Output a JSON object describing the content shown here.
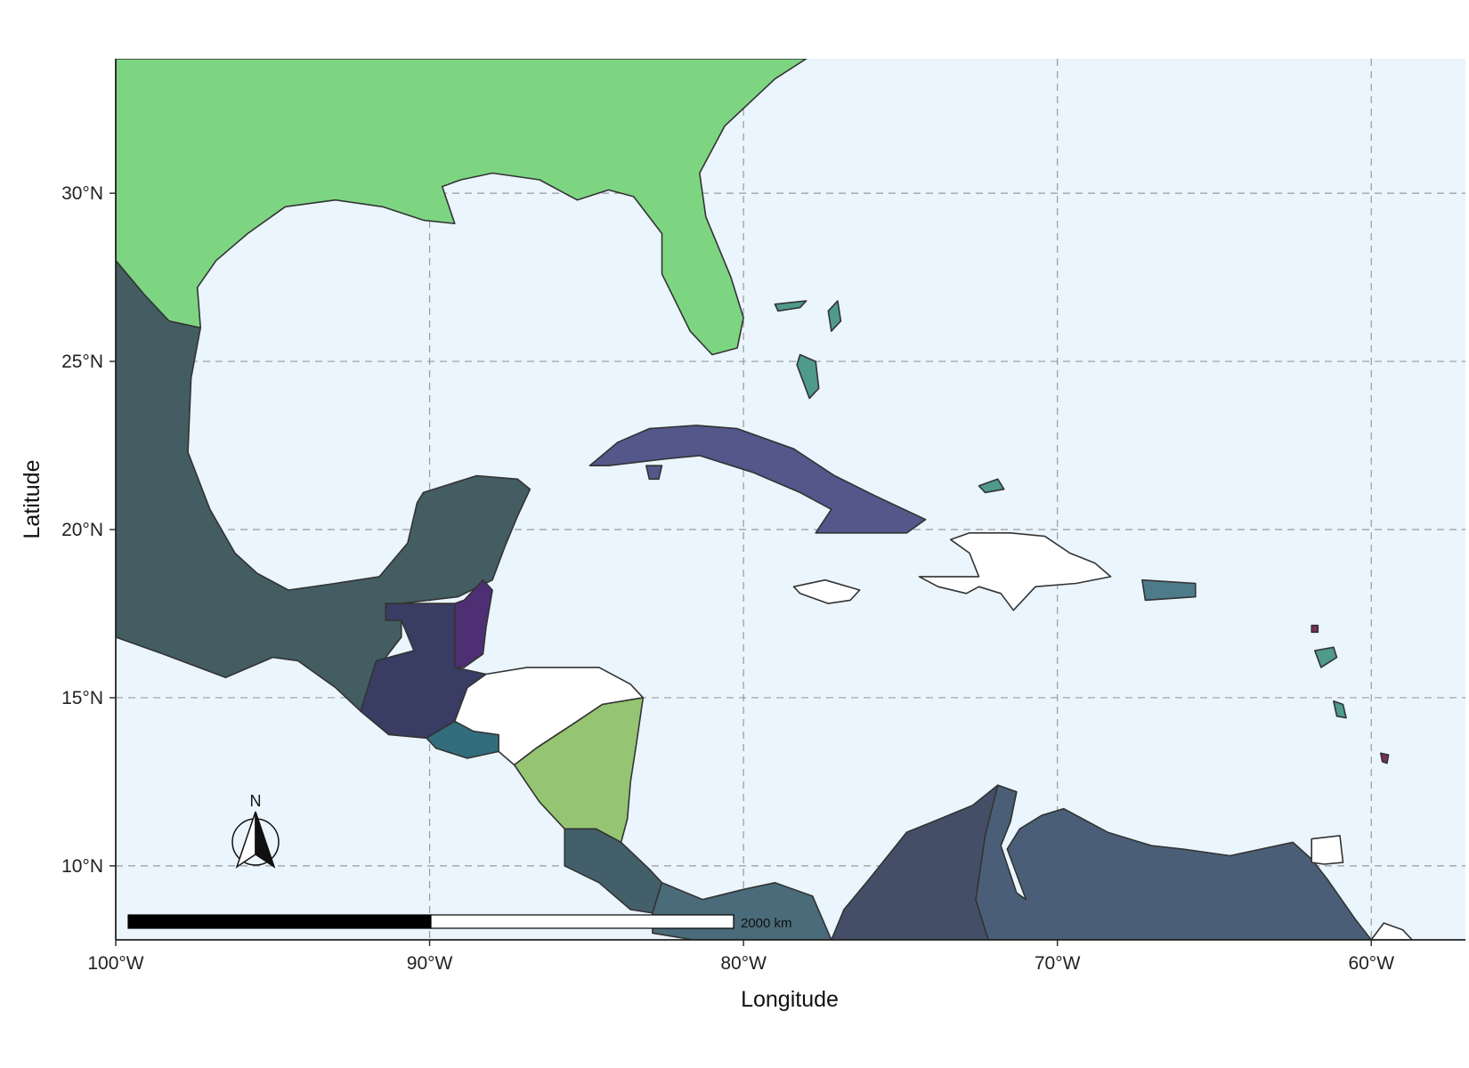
{
  "map": {
    "xlabel": "Longitude",
    "ylabel": "Latitude",
    "lon_range": [
      -100,
      -57
    ],
    "lat_range": [
      7.8,
      34.0
    ],
    "ocean_color": "#eaf5fd",
    "x_ticks": [
      {
        "value": -100,
        "label": "100°W"
      },
      {
        "value": -90,
        "label": "90°W"
      },
      {
        "value": -80,
        "label": "80°W"
      },
      {
        "value": -70,
        "label": "70°W"
      },
      {
        "value": -60,
        "label": "60°W"
      }
    ],
    "y_ticks": [
      {
        "value": 10,
        "label": "10°N"
      },
      {
        "value": 15,
        "label": "15°N"
      },
      {
        "value": 20,
        "label": "20°N"
      },
      {
        "value": 25,
        "label": "25°N"
      },
      {
        "value": 30,
        "label": "30°N"
      }
    ],
    "grid": true,
    "scale_bar": {
      "label": "2000 km"
    },
    "north_arrow": {
      "label": "N"
    }
  },
  "chart_data": {
    "type": "choropleth",
    "xlabel": "Longitude",
    "ylabel": "Latitude",
    "xlim": [
      -100,
      -57
    ],
    "ylim": [
      7.8,
      34.0
    ],
    "grid": true,
    "regions": [
      {
        "id": "usa",
        "color": "#7dd582",
        "outline": [
          [
            -100,
            34
          ],
          [
            -78,
            34
          ],
          [
            -79,
            33.4
          ],
          [
            -80.6,
            32
          ],
          [
            -81.4,
            30.6
          ],
          [
            -81.2,
            29.3
          ],
          [
            -80.4,
            27.5
          ],
          [
            -80.0,
            26.3
          ],
          [
            -80.2,
            25.4
          ],
          [
            -81.0,
            25.2
          ],
          [
            -81.7,
            25.9
          ],
          [
            -82.6,
            27.6
          ],
          [
            -82.6,
            28.8
          ],
          [
            -83.5,
            29.9
          ],
          [
            -84.3,
            30.1
          ],
          [
            -85.3,
            29.8
          ],
          [
            -86.5,
            30.4
          ],
          [
            -88.0,
            30.6
          ],
          [
            -89.0,
            30.4
          ],
          [
            -89.6,
            30.2
          ],
          [
            -89.2,
            29.1
          ],
          [
            -90.2,
            29.2
          ],
          [
            -91.5,
            29.6
          ],
          [
            -93.0,
            29.8
          ],
          [
            -94.6,
            29.6
          ],
          [
            -95.8,
            28.8
          ],
          [
            -96.8,
            28.0
          ],
          [
            -97.4,
            27.2
          ],
          [
            -97.3,
            26.0
          ],
          [
            -100,
            26.2
          ]
        ]
      },
      {
        "id": "mexico",
        "color": "#435d63",
        "outline": [
          [
            -100,
            28
          ],
          [
            -99.1,
            27
          ],
          [
            -98.3,
            26.2
          ],
          [
            -97.3,
            26.0
          ],
          [
            -97.6,
            24.5
          ],
          [
            -97.7,
            22.3
          ],
          [
            -97.0,
            20.6
          ],
          [
            -96.2,
            19.3
          ],
          [
            -95.5,
            18.7
          ],
          [
            -94.5,
            18.2
          ],
          [
            -93.0,
            18.4
          ],
          [
            -91.6,
            18.6
          ],
          [
            -90.7,
            19.6
          ],
          [
            -90.4,
            20.8
          ],
          [
            -90.2,
            21.1
          ],
          [
            -88.5,
            21.6
          ],
          [
            -87.2,
            21.5
          ],
          [
            -86.8,
            21.2
          ],
          [
            -87.2,
            20.4
          ],
          [
            -87.6,
            19.5
          ],
          [
            -88.0,
            18.5
          ],
          [
            -89.1,
            18.0
          ],
          [
            -90.9,
            17.8
          ],
          [
            -90.9,
            16.8
          ],
          [
            -91.4,
            16.2
          ],
          [
            -92.2,
            14.6
          ],
          [
            -93.0,
            15.3
          ],
          [
            -94.2,
            16.1
          ],
          [
            -95.0,
            16.2
          ],
          [
            -96.5,
            15.6
          ],
          [
            -98.5,
            16.3
          ],
          [
            -100,
            16.8
          ]
        ]
      },
      {
        "id": "guatemala",
        "color": "#393c63",
        "outline": [
          [
            -91.4,
            17.8
          ],
          [
            -89.2,
            17.8
          ],
          [
            -89.2,
            15.9
          ],
          [
            -88.2,
            15.7
          ],
          [
            -88.8,
            15.3
          ],
          [
            -89.2,
            14.3
          ],
          [
            -90.1,
            13.8
          ],
          [
            -91.3,
            13.9
          ],
          [
            -92.2,
            14.6
          ],
          [
            -91.7,
            16.1
          ],
          [
            -90.5,
            16.4
          ],
          [
            -90.9,
            17.3
          ],
          [
            -91.4,
            17.3
          ]
        ]
      },
      {
        "id": "belize",
        "color": "#4e2f73",
        "outline": [
          [
            -89.2,
            17.8
          ],
          [
            -88.9,
            17.9
          ],
          [
            -88.3,
            18.5
          ],
          [
            -88.0,
            18.2
          ],
          [
            -88.2,
            17.1
          ],
          [
            -88.3,
            16.3
          ],
          [
            -88.9,
            15.9
          ],
          [
            -89.2,
            15.9
          ]
        ]
      },
      {
        "id": "honduras",
        "color": "#ffffff",
        "outline": [
          [
            -88.2,
            15.7
          ],
          [
            -86.9,
            15.9
          ],
          [
            -85.9,
            15.9
          ],
          [
            -84.6,
            15.9
          ],
          [
            -83.6,
            15.4
          ],
          [
            -83.2,
            15.0
          ],
          [
            -84.5,
            14.8
          ],
          [
            -85.3,
            14.3
          ],
          [
            -86.6,
            13.5
          ],
          [
            -87.3,
            13.0
          ],
          [
            -87.8,
            13.4
          ],
          [
            -88.8,
            14.0
          ],
          [
            -89.2,
            14.3
          ],
          [
            -88.8,
            15.3
          ]
        ]
      },
      {
        "id": "el-salvador",
        "color": "#326d7d",
        "outline": [
          [
            -90.1,
            13.8
          ],
          [
            -89.2,
            14.3
          ],
          [
            -88.6,
            14.0
          ],
          [
            -87.8,
            13.9
          ],
          [
            -87.8,
            13.4
          ],
          [
            -88.8,
            13.2
          ],
          [
            -89.8,
            13.5
          ]
        ]
      },
      {
        "id": "nicaragua",
        "color": "#95c573",
        "outline": [
          [
            -87.3,
            13.0
          ],
          [
            -86.6,
            13.5
          ],
          [
            -85.3,
            14.3
          ],
          [
            -84.5,
            14.8
          ],
          [
            -83.2,
            15.0
          ],
          [
            -83.4,
            13.7
          ],
          [
            -83.6,
            12.5
          ],
          [
            -83.7,
            11.4
          ],
          [
            -83.9,
            10.7
          ],
          [
            -84.7,
            11.1
          ],
          [
            -85.7,
            11.1
          ],
          [
            -86.5,
            11.9
          ]
        ]
      },
      {
        "id": "costa-rica",
        "color": "#43606a",
        "outline": [
          [
            -85.7,
            11.1
          ],
          [
            -84.7,
            11.1
          ],
          [
            -83.9,
            10.7
          ],
          [
            -83.0,
            9.9
          ],
          [
            -82.6,
            9.5
          ],
          [
            -82.9,
            8.6
          ],
          [
            -83.6,
            8.7
          ],
          [
            -84.6,
            9.5
          ],
          [
            -85.7,
            10.0
          ]
        ]
      },
      {
        "id": "panama",
        "color": "#4a6b7a",
        "outline": [
          [
            -82.9,
            8.6
          ],
          [
            -82.6,
            9.5
          ],
          [
            -81.3,
            9.0
          ],
          [
            -80.0,
            9.3
          ],
          [
            -79.0,
            9.5
          ],
          [
            -77.8,
            9.1
          ],
          [
            -77.2,
            7.8
          ],
          [
            -78.5,
            7.8
          ],
          [
            -80.4,
            7.8
          ],
          [
            -81.6,
            7.8
          ],
          [
            -82.9,
            8.0
          ]
        ]
      },
      {
        "id": "colombia",
        "color": "#444f67",
        "outline": [
          [
            -77.2,
            7.8
          ],
          [
            -76.8,
            8.7
          ],
          [
            -76.0,
            9.6
          ],
          [
            -74.8,
            11.0
          ],
          [
            -74.0,
            11.3
          ],
          [
            -72.7,
            11.8
          ],
          [
            -71.9,
            12.4
          ],
          [
            -71.3,
            12.2
          ],
          [
            -71.5,
            11.3
          ],
          [
            -72.3,
            10.9
          ],
          [
            -72.6,
            9.0
          ],
          [
            -72.2,
            7.8
          ]
        ]
      },
      {
        "id": "venezuela",
        "color": "#4a5f77",
        "outline": [
          [
            -71.9,
            12.4
          ],
          [
            -71.3,
            12.2
          ],
          [
            -71.5,
            11.3
          ],
          [
            -71.8,
            10.6
          ],
          [
            -71.3,
            9.2
          ],
          [
            -71.0,
            9.0
          ],
          [
            -71.6,
            10.5
          ],
          [
            -71.2,
            11.1
          ],
          [
            -70.5,
            11.5
          ],
          [
            -69.8,
            11.7
          ],
          [
            -68.4,
            11.0
          ],
          [
            -67.0,
            10.6
          ],
          [
            -66.0,
            10.5
          ],
          [
            -64.5,
            10.3
          ],
          [
            -62.5,
            10.7
          ],
          [
            -61.9,
            10.2
          ],
          [
            -61.4,
            9.6
          ],
          [
            -60.5,
            8.4
          ],
          [
            -60.0,
            7.8
          ],
          [
            -72.2,
            7.8
          ],
          [
            -72.6,
            9.0
          ],
          [
            -72.3,
            10.9
          ]
        ]
      },
      {
        "id": "guyana",
        "color": "#ffffff",
        "outline": [
          [
            -60.0,
            7.8
          ],
          [
            -59.6,
            8.3
          ],
          [
            -59.0,
            8.1
          ],
          [
            -58.7,
            7.8
          ]
        ]
      },
      {
        "id": "trinidad",
        "color": "#ffffff",
        "outline": [
          [
            -61.9,
            10.8
          ],
          [
            -61.0,
            10.9
          ],
          [
            -60.9,
            10.1
          ],
          [
            -61.5,
            10.05
          ],
          [
            -61.9,
            10.1
          ]
        ]
      },
      {
        "id": "cuba",
        "color": "#53578a",
        "outline": [
          [
            -84.9,
            21.9
          ],
          [
            -84.0,
            22.6
          ],
          [
            -83.0,
            23.0
          ],
          [
            -81.5,
            23.1
          ],
          [
            -80.2,
            23.0
          ],
          [
            -78.4,
            22.4
          ],
          [
            -77.1,
            21.6
          ],
          [
            -75.8,
            21.0
          ],
          [
            -74.2,
            20.3
          ],
          [
            -74.8,
            19.9
          ],
          [
            -76.5,
            19.9
          ],
          [
            -77.7,
            19.9
          ],
          [
            -77.2,
            20.6
          ],
          [
            -78.2,
            21.1
          ],
          [
            -79.7,
            21.7
          ],
          [
            -81.4,
            22.2
          ],
          [
            -82.5,
            22.1
          ],
          [
            -84.3,
            21.9
          ]
        ]
      },
      {
        "id": "isla-juventud",
        "color": "#53578a",
        "outline": [
          [
            -83.1,
            21.9
          ],
          [
            -82.6,
            21.9
          ],
          [
            -82.7,
            21.5
          ],
          [
            -83.0,
            21.5
          ]
        ]
      },
      {
        "id": "jamaica",
        "color": "#ffffff",
        "outline": [
          [
            -78.4,
            18.3
          ],
          [
            -77.4,
            18.5
          ],
          [
            -76.3,
            18.2
          ],
          [
            -76.6,
            17.9
          ],
          [
            -77.3,
            17.8
          ],
          [
            -78.2,
            18.1
          ]
        ]
      },
      {
        "id": "haiti-dominican",
        "color": "#ffffff",
        "outline": [
          [
            -74.4,
            18.6
          ],
          [
            -73.8,
            18.3
          ],
          [
            -72.9,
            18.1
          ],
          [
            -72.5,
            18.3
          ],
          [
            -71.8,
            18.1
          ],
          [
            -71.4,
            17.6
          ],
          [
            -70.7,
            18.3
          ],
          [
            -69.4,
            18.4
          ],
          [
            -68.3,
            18.6
          ],
          [
            -68.8,
            19.0
          ],
          [
            -69.6,
            19.3
          ],
          [
            -70.4,
            19.8
          ],
          [
            -71.5,
            19.9
          ],
          [
            -72.8,
            19.9
          ],
          [
            -73.4,
            19.7
          ],
          [
            -72.8,
            19.3
          ],
          [
            -72.5,
            18.6
          ],
          [
            -73.4,
            18.6
          ]
        ]
      },
      {
        "id": "puerto-rico",
        "color": "#4d7b8a",
        "outline": [
          [
            -67.3,
            18.5
          ],
          [
            -65.6,
            18.4
          ],
          [
            -65.6,
            18.0
          ],
          [
            -67.2,
            17.9
          ]
        ]
      },
      {
        "id": "bahamas-andros",
        "color": "#4f9a8b",
        "outline": [
          [
            -78.2,
            25.2
          ],
          [
            -77.7,
            25.0
          ],
          [
            -77.6,
            24.2
          ],
          [
            -77.9,
            23.9
          ],
          [
            -78.1,
            24.4
          ],
          [
            -78.3,
            24.9
          ]
        ]
      },
      {
        "id": "bahamas-abaco",
        "color": "#4f9a8b",
        "outline": [
          [
            -77.0,
            26.8
          ],
          [
            -76.9,
            26.2
          ],
          [
            -77.2,
            25.9
          ],
          [
            -77.3,
            26.5
          ]
        ]
      },
      {
        "id": "bahamas-grand",
        "color": "#4f9a8b",
        "outline": [
          [
            -79.0,
            26.7
          ],
          [
            -78.0,
            26.8
          ],
          [
            -78.2,
            26.6
          ],
          [
            -78.9,
            26.5
          ]
        ]
      },
      {
        "id": "turks-caicos",
        "color": "#4f9a8b",
        "outline": [
          [
            -72.5,
            21.3
          ],
          [
            -71.9,
            21.5
          ],
          [
            -71.7,
            21.2
          ],
          [
            -72.3,
            21.1
          ]
        ]
      },
      {
        "id": "antigua",
        "color": "#7a2e5e",
        "outline": [
          [
            -61.9,
            17.15
          ],
          [
            -61.7,
            17.15
          ],
          [
            -61.7,
            16.95
          ],
          [
            -61.9,
            16.95
          ]
        ]
      },
      {
        "id": "guadeloupe",
        "color": "#4f9a8b",
        "outline": [
          [
            -61.8,
            16.4
          ],
          [
            -61.2,
            16.5
          ],
          [
            -61.1,
            16.2
          ],
          [
            -61.6,
            15.9
          ]
        ]
      },
      {
        "id": "martinique",
        "color": "#4f9a8b",
        "outline": [
          [
            -61.2,
            14.9
          ],
          [
            -60.9,
            14.8
          ],
          [
            -60.8,
            14.4
          ],
          [
            -61.1,
            14.45
          ]
        ]
      },
      {
        "id": "barbados",
        "color": "#7a2e5e",
        "outline": [
          [
            -59.7,
            13.35
          ],
          [
            -59.45,
            13.3
          ],
          [
            -59.5,
            13.05
          ],
          [
            -59.65,
            13.1
          ]
        ]
      }
    ]
  }
}
